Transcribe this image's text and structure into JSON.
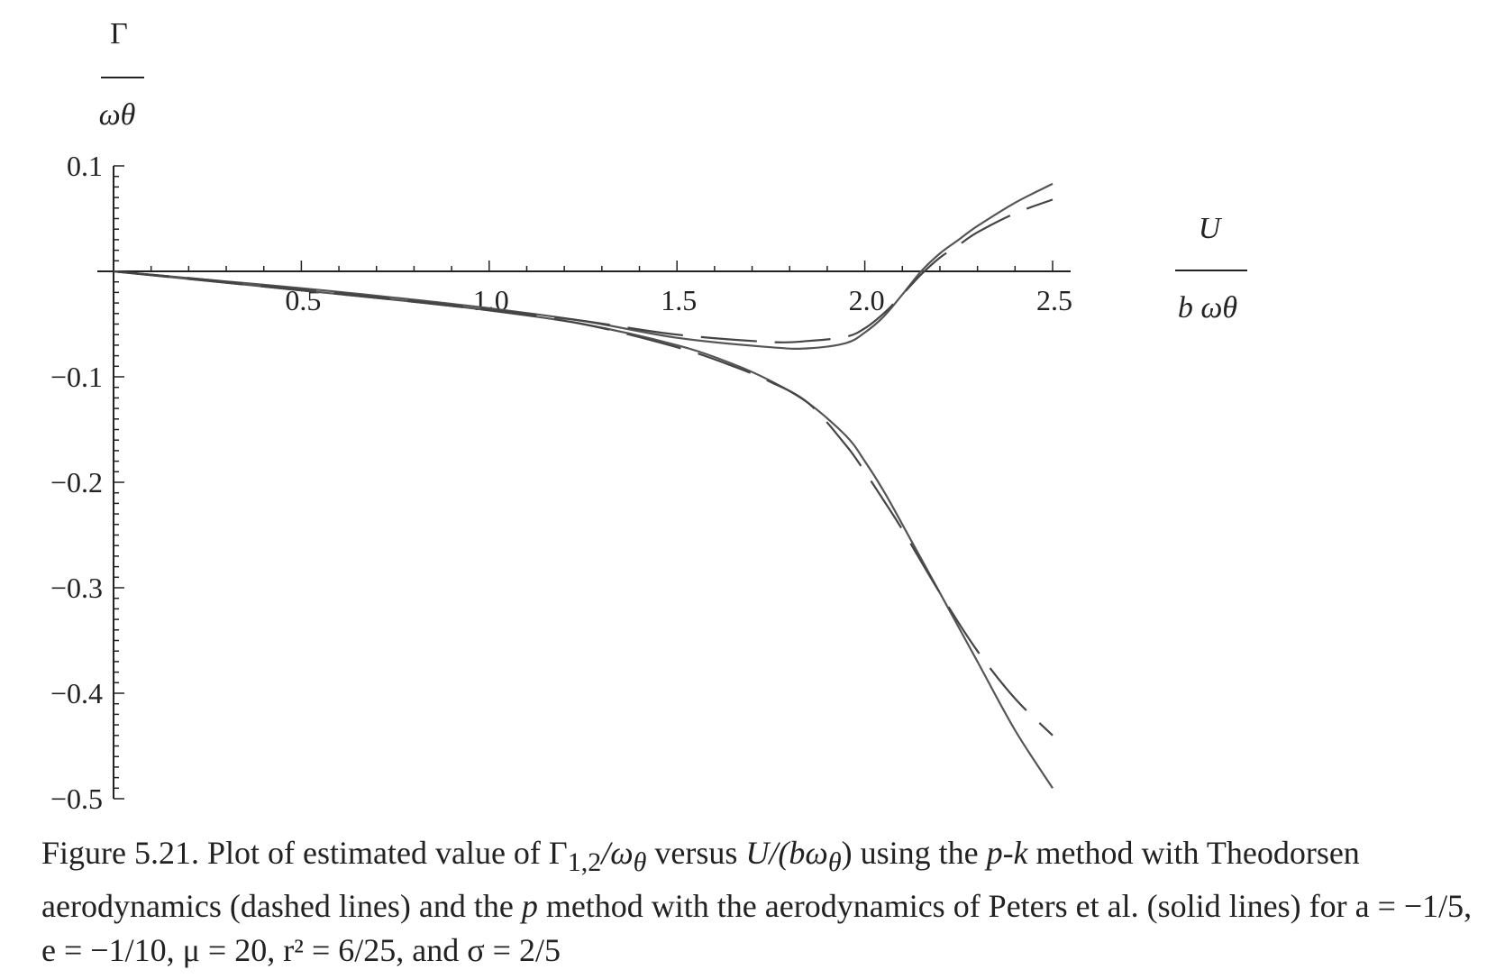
{
  "chart_data": {
    "type": "line",
    "x_ticks": [
      "0.5",
      "1.0",
      "1.5",
      "2.0",
      "2.5"
    ],
    "y_ticks": [
      "0.1",
      "−0.1",
      "−0.2",
      "−0.3",
      "−0.4",
      "−0.5"
    ],
    "y_label": {
      "numerator": "Γ",
      "denominator": "ωθ"
    },
    "x_label": {
      "numerator": "U",
      "denominator": "b ωθ"
    },
    "xlim": [
      0,
      2.5
    ],
    "ylim": [
      -0.5,
      0.1
    ],
    "grid": false,
    "series": [
      {
        "style": "solid",
        "x": [
          0,
          0.25,
          0.5,
          0.75,
          1.0,
          1.25,
          1.5,
          1.75,
          1.85,
          1.95,
          2.0,
          2.05,
          2.1,
          2.15,
          2.2,
          2.25,
          2.3,
          2.4,
          2.5
        ],
        "y": [
          0,
          -0.008,
          -0.016,
          -0.025,
          -0.035,
          -0.047,
          -0.063,
          -0.072,
          -0.073,
          -0.068,
          -0.058,
          -0.043,
          -0.022,
          0.0,
          0.017,
          0.03,
          0.043,
          0.065,
          0.083
        ]
      },
      {
        "style": "solid",
        "x": [
          0,
          0.25,
          0.5,
          0.75,
          1.0,
          1.25,
          1.5,
          1.65,
          1.75,
          1.85,
          1.95,
          2.0,
          2.05,
          2.1,
          2.2,
          2.3,
          2.4,
          2.5
        ],
        "y": [
          0,
          -0.009,
          -0.018,
          -0.027,
          -0.037,
          -0.05,
          -0.07,
          -0.088,
          -0.104,
          -0.125,
          -0.156,
          -0.18,
          -0.208,
          -0.24,
          -0.305,
          -0.37,
          -0.435,
          -0.49
        ]
      },
      {
        "style": "dashed",
        "x": [
          0,
          0.25,
          0.5,
          0.75,
          1.0,
          1.25,
          1.5,
          1.75,
          1.85,
          1.95,
          2.0,
          2.05,
          2.1,
          2.15,
          2.2,
          2.25,
          2.3,
          2.4,
          2.5
        ],
        "y": [
          0,
          -0.008,
          -0.017,
          -0.026,
          -0.036,
          -0.047,
          -0.06,
          -0.067,
          -0.066,
          -0.062,
          -0.054,
          -0.04,
          -0.022,
          -0.003,
          0.013,
          0.025,
          0.037,
          0.055,
          0.068
        ]
      },
      {
        "style": "dashed",
        "x": [
          0,
          0.25,
          0.5,
          0.75,
          1.0,
          1.25,
          1.5,
          1.65,
          1.75,
          1.85,
          1.95,
          2.0,
          2.05,
          2.1,
          2.2,
          2.3,
          2.4,
          2.5
        ],
        "y": [
          0,
          -0.009,
          -0.018,
          -0.027,
          -0.037,
          -0.05,
          -0.072,
          -0.09,
          -0.105,
          -0.125,
          -0.165,
          -0.19,
          -0.217,
          -0.245,
          -0.305,
          -0.36,
          -0.405,
          -0.44
        ]
      }
    ]
  },
  "caption": {
    "prefix": "Figure 5.21. Plot of estimated value of ",
    "gamma": "Γ",
    "gamma_sub": "1,2",
    "slash_omega": "/ω",
    "theta": "θ",
    "versus": " versus ",
    "u_part": "U",
    "paren_open": "/(bω",
    "paren_close": ")",
    "using": " using the ",
    "pk": "p-k",
    "method_with": " method with Theodorsen aerodynamics (dashed lines) and the ",
    "p": "p",
    "rest": " method with the aerodynamics of Peters et al. (solid lines) for ",
    "params": "a = −1/5, e = −1/10, μ = 20, r² = 6/25, and σ = 2/5"
  }
}
